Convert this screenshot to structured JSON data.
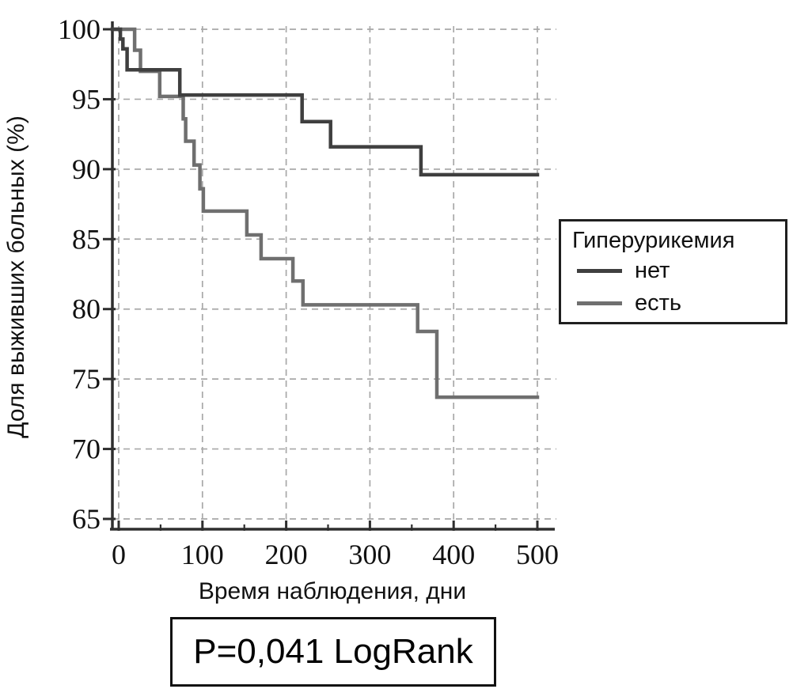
{
  "figure": {
    "background": "#ffffff",
    "axis_color": "#2e2e2e",
    "grid_color": "#a8a8a8",
    "text_color": "#111111"
  },
  "chart_data": {
    "type": "line",
    "subtype": "kaplan-meier-step-survival",
    "title": "",
    "xlabel": "Время наблюдения, дни",
    "ylabel": "Доля выживших больных (%)",
    "xlim": [
      0,
      500
    ],
    "ylim": [
      65,
      100
    ],
    "xticks": [
      0,
      100,
      200,
      300,
      400,
      500
    ],
    "xminorticks": [
      50,
      150,
      250,
      350,
      450
    ],
    "yticks": [
      100,
      95,
      90,
      85,
      80,
      75,
      70,
      65
    ],
    "grid": "dashed gridlines at every major tick, both axes",
    "legend_position": "outside right",
    "series": [
      {
        "name": "нет",
        "color": "#3f3f3f",
        "comment": "each point = [day, survival % after drop at that day]; flat to 500",
        "points": [
          [
            0,
            100
          ],
          [
            2,
            99.3
          ],
          [
            5,
            98.6
          ],
          [
            10,
            97.1
          ],
          [
            73,
            95.3
          ],
          [
            219,
            93.4
          ],
          [
            253,
            91.6
          ],
          [
            361,
            89.6
          ],
          [
            500,
            89.6
          ]
        ]
      },
      {
        "name": "есть",
        "color": "#6f6f6f",
        "comment": "each point = [day, survival % after drop at that day]; flat to 500",
        "points": [
          [
            0,
            100
          ],
          [
            19,
            98.5
          ],
          [
            26,
            97.0
          ],
          [
            49,
            95.2
          ],
          [
            77,
            93.6
          ],
          [
            80,
            92.0
          ],
          [
            90,
            90.3
          ],
          [
            97,
            88.6
          ],
          [
            101,
            87.0
          ],
          [
            153,
            85.3
          ],
          [
            170,
            83.6
          ],
          [
            208,
            82.0
          ],
          [
            220,
            80.3
          ],
          [
            357,
            78.4
          ],
          [
            380,
            73.7
          ],
          [
            500,
            73.7
          ]
        ]
      }
    ],
    "annotation": "P=0,041 LogRank"
  },
  "legend": {
    "title": "Гиперурикемия",
    "items": [
      {
        "label": "нет",
        "color": "#3f3f3f"
      },
      {
        "label": "есть",
        "color": "#6f6f6f"
      }
    ]
  },
  "pvalue_box": {
    "text": "P=0,041 LogRank"
  }
}
